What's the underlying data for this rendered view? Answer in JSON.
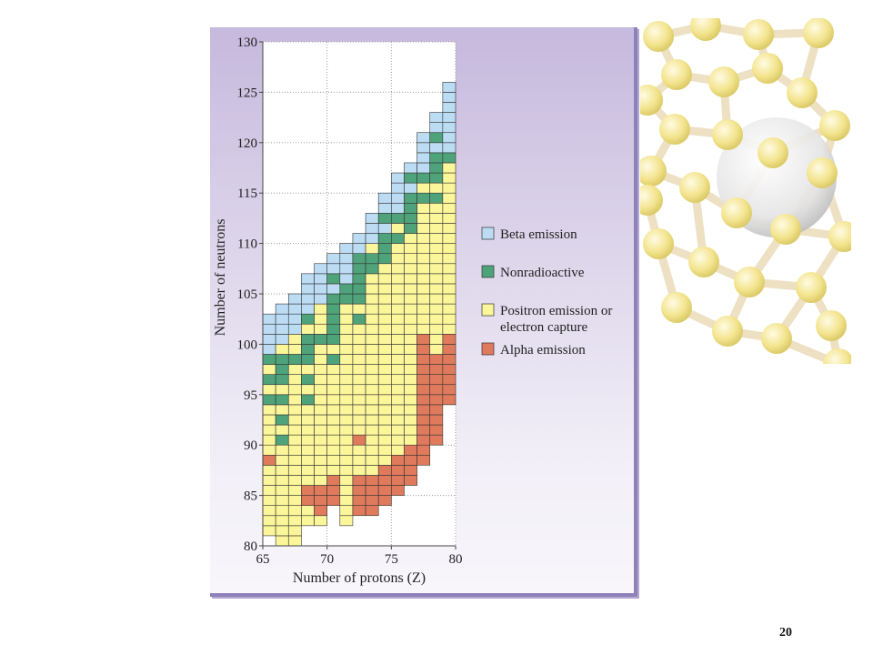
{
  "slide": {
    "page_number": "20"
  },
  "decoration": {
    "image": "fullerene-molecule",
    "ball_color": "#f3e48e",
    "bond_color": "#eee0c2",
    "sphere_color": "#e4e4e4"
  },
  "chart_data": {
    "type": "heatmap",
    "title": "",
    "xlabel": "Number of protons (Z)",
    "ylabel": "Number of neutrons",
    "xlim": [
      65,
      80
    ],
    "ylim": [
      80,
      130
    ],
    "x_ticks": [
      "65",
      "70",
      "75",
      "80"
    ],
    "y_ticks": [
      "80",
      "85",
      "90",
      "95",
      "100",
      "105",
      "110",
      "115",
      "120",
      "125",
      "130"
    ],
    "grid": true,
    "legend_position": "right",
    "categories": [
      {
        "key": "B",
        "label": "Beta emission",
        "color": "#bcdcf4"
      },
      {
        "key": "N",
        "label": "Nonradioactive",
        "color": "#4fa37a"
      },
      {
        "key": "P",
        "label_lines": [
          "Positron emission or",
          "electron capture"
        ],
        "color": "#fbf69a"
      },
      {
        "key": "A",
        "label": "Alpha emission",
        "color": "#e07a5c"
      }
    ],
    "columns": [
      {
        "z": 65,
        "n_min": 81,
        "n_max": 102,
        "nonradioactive": [
          94,
          96,
          98
        ],
        "alpha": [
          88
        ]
      },
      {
        "z": 66,
        "n_min": 80,
        "n_max": 103,
        "nonradioactive": [
          90,
          92,
          94,
          96,
          97,
          98
        ],
        "alpha": []
      },
      {
        "z": 67,
        "n_min": 80,
        "n_max": 104,
        "nonradioactive": [
          98
        ],
        "alpha": []
      },
      {
        "z": 68,
        "n_min": 82,
        "n_max": 106,
        "nonradioactive": [
          94,
          96,
          98,
          99,
          100,
          102
        ],
        "alpha": [
          84,
          85
        ]
      },
      {
        "z": 69,
        "n_min": 82,
        "n_max": 107,
        "nonradioactive": [
          100
        ],
        "alpha": [
          83,
          84,
          85
        ]
      },
      {
        "z": 70,
        "n_min": 84,
        "n_max": 108,
        "nonradioactive": [
          98,
          100,
          101,
          102,
          103,
          104,
          106
        ],
        "alpha": [
          84,
          85,
          86
        ]
      },
      {
        "z": 71,
        "n_min": 82,
        "n_max": 109,
        "nonradioactive": [
          104,
          105
        ],
        "alpha": []
      },
      {
        "z": 72,
        "n_min": 83,
        "n_max": 110,
        "nonradioactive": [
          102,
          104,
          105,
          106,
          107,
          108
        ],
        "alpha": [
          83,
          84,
          85,
          86,
          90
        ]
      },
      {
        "z": 73,
        "n_min": 83,
        "n_max": 112,
        "nonradioactive": [
          107,
          108
        ],
        "alpha": [
          83,
          84,
          85,
          86
        ]
      },
      {
        "z": 74,
        "n_min": 84,
        "n_max": 114,
        "nonradioactive": [
          108,
          109,
          110,
          112
        ],
        "alpha": [
          84,
          85,
          86,
          87
        ]
      },
      {
        "z": 75,
        "n_min": 85,
        "n_max": 116,
        "nonradioactive": [
          110,
          112
        ],
        "alpha": [
          85,
          86,
          87,
          88
        ]
      },
      {
        "z": 76,
        "n_min": 86,
        "n_max": 117,
        "nonradioactive": [
          111,
          112,
          113,
          114,
          116
        ],
        "alpha": [
          86,
          87,
          88,
          89
        ]
      },
      {
        "z": 77,
        "n_min": 88,
        "n_max": 120,
        "nonradioactive": [
          114,
          116
        ],
        "alpha": [
          88,
          89,
          90,
          91,
          92,
          93,
          94,
          95,
          96,
          97,
          98,
          99,
          100
        ]
      },
      {
        "z": 78,
        "n_min": 90,
        "n_max": 122,
        "nonradioactive": [
          114,
          116,
          117,
          118,
          120
        ],
        "alpha": [
          90,
          91,
          92,
          93,
          94,
          95,
          96,
          97,
          98
        ]
      },
      {
        "z": 79,
        "n_min": 94,
        "n_max": 125,
        "nonradioactive": [
          118
        ],
        "alpha": [
          94,
          95,
          96,
          97,
          98,
          99,
          100
        ]
      }
    ],
    "beta_from_n": [
      99,
      100,
      101,
      102,
      104,
      105,
      106,
      108,
      110,
      111,
      113,
      114,
      116,
      118,
      119
    ]
  }
}
